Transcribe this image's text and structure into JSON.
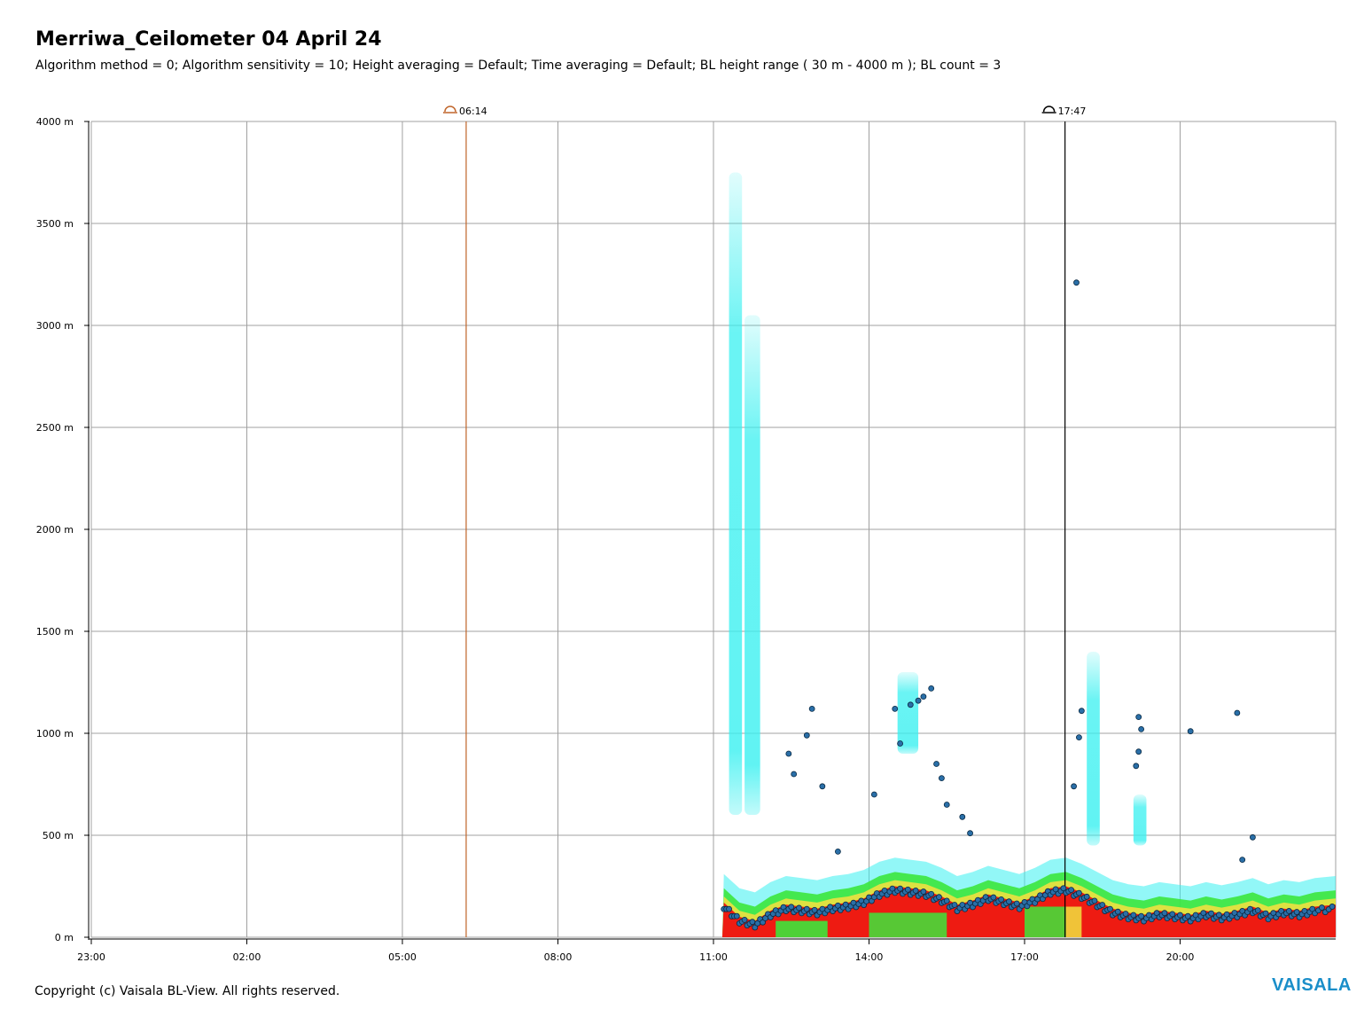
{
  "header": {
    "title": "Merriwa_Ceilometer 04 April 24",
    "subtitle": "Algorithm method = 0; Algorithm sensitivity = 10; Height averaging = Default; Time averaging = Default; BL height range ( 30 m - 4000 m ); BL count = 3"
  },
  "footer": {
    "copyright": "Copyright (c) Vaisala BL-View. All rights reserved.",
    "logo_text": "VAISALA"
  },
  "colors": {
    "grid": "#a0a0a0",
    "sunrise": "#c0652a",
    "sunset": "#000000",
    "cyan": "#39f0f0",
    "green": "#3ce63c",
    "yellow": "#f0e040",
    "red": "#ee1010",
    "dot_fill": "#2a6fa8",
    "logo": "#1a8ec9"
  },
  "chart_data": {
    "type": "heatmap",
    "title": "Merriwa_Ceilometer 04 April 24",
    "xlabel": "",
    "ylabel": "",
    "x_start_hours": 0,
    "x_end_hours": 24,
    "xticks": [
      {
        "h": 0,
        "label": "23:00"
      },
      {
        "h": 3,
        "label": "02:00"
      },
      {
        "h": 6,
        "label": "05:00"
      },
      {
        "h": 9,
        "label": "08:00"
      },
      {
        "h": 12,
        "label": "11:00"
      },
      {
        "h": 15,
        "label": "14:00"
      },
      {
        "h": 18,
        "label": "17:00"
      },
      {
        "h": 21,
        "label": "20:00"
      }
    ],
    "ylim": [
      0,
      4000
    ],
    "yticks": [
      {
        "v": 0,
        "label": "0 m"
      },
      {
        "v": 500,
        "label": "500 m"
      },
      {
        "v": 1000,
        "label": "1000 m"
      },
      {
        "v": 1500,
        "label": "1500 m"
      },
      {
        "v": 2000,
        "label": "2000 m"
      },
      {
        "v": 2500,
        "label": "2500 m"
      },
      {
        "v": 3000,
        "label": "3000 m"
      },
      {
        "v": 3500,
        "label": "3500 m"
      },
      {
        "v": 4000,
        "label": "4000 m"
      }
    ],
    "grid": true,
    "sunrise": {
      "h": 7.23,
      "label": "06:14"
    },
    "sunset": {
      "h": 18.78,
      "label": "17:47"
    },
    "data_start_h": 12.17,
    "data_end_h": 24,
    "cloud_plumes": [
      {
        "h0": 12.3,
        "h1": 12.55,
        "top": 3750,
        "bottom": 600
      },
      {
        "h0": 12.6,
        "h1": 12.9,
        "top": 3050,
        "bottom": 600
      },
      {
        "h0": 15.55,
        "h1": 15.95,
        "top": 1300,
        "bottom": 900
      },
      {
        "h0": 19.2,
        "h1": 19.45,
        "top": 1400,
        "bottom": 450
      },
      {
        "h0": 20.1,
        "h1": 20.35,
        "top": 700,
        "bottom": 450
      }
    ],
    "boundary_layer_m": [
      {
        "h": 12.2,
        "v": 150
      },
      {
        "h": 12.5,
        "v": 80
      },
      {
        "h": 12.8,
        "v": 60
      },
      {
        "h": 13.1,
        "v": 110
      },
      {
        "h": 13.4,
        "v": 140
      },
      {
        "h": 13.7,
        "v": 130
      },
      {
        "h": 14.0,
        "v": 120
      },
      {
        "h": 14.3,
        "v": 140
      },
      {
        "h": 14.6,
        "v": 150
      },
      {
        "h": 14.9,
        "v": 170
      },
      {
        "h": 15.2,
        "v": 210
      },
      {
        "h": 15.5,
        "v": 230
      },
      {
        "h": 15.8,
        "v": 220
      },
      {
        "h": 16.1,
        "v": 210
      },
      {
        "h": 16.4,
        "v": 180
      },
      {
        "h": 16.7,
        "v": 140
      },
      {
        "h": 17.0,
        "v": 160
      },
      {
        "h": 17.3,
        "v": 190
      },
      {
        "h": 17.6,
        "v": 170
      },
      {
        "h": 17.9,
        "v": 150
      },
      {
        "h": 18.2,
        "v": 180
      },
      {
        "h": 18.5,
        "v": 220
      },
      {
        "h": 18.8,
        "v": 230
      },
      {
        "h": 19.1,
        "v": 200
      },
      {
        "h": 19.4,
        "v": 160
      },
      {
        "h": 19.7,
        "v": 120
      },
      {
        "h": 20.0,
        "v": 100
      },
      {
        "h": 20.3,
        "v": 90
      },
      {
        "h": 20.6,
        "v": 110
      },
      {
        "h": 20.9,
        "v": 100
      },
      {
        "h": 21.2,
        "v": 90
      },
      {
        "h": 21.5,
        "v": 110
      },
      {
        "h": 21.8,
        "v": 95
      },
      {
        "h": 22.1,
        "v": 110
      },
      {
        "h": 22.4,
        "v": 130
      },
      {
        "h": 22.7,
        "v": 100
      },
      {
        "h": 23.0,
        "v": 120
      },
      {
        "h": 23.3,
        "v": 110
      },
      {
        "h": 23.6,
        "v": 130
      },
      {
        "h": 24.0,
        "v": 140
      }
    ],
    "upper_points_m": [
      {
        "h": 13.45,
        "v": 900
      },
      {
        "h": 13.55,
        "v": 800
      },
      {
        "h": 13.8,
        "v": 990
      },
      {
        "h": 13.9,
        "v": 1120
      },
      {
        "h": 14.1,
        "v": 740
      },
      {
        "h": 14.4,
        "v": 420
      },
      {
        "h": 15.1,
        "v": 700
      },
      {
        "h": 15.5,
        "v": 1120
      },
      {
        "h": 15.6,
        "v": 950
      },
      {
        "h": 15.8,
        "v": 1140
      },
      {
        "h": 15.95,
        "v": 1160
      },
      {
        "h": 16.05,
        "v": 1180
      },
      {
        "h": 16.2,
        "v": 1220
      },
      {
        "h": 16.3,
        "v": 850
      },
      {
        "h": 16.4,
        "v": 780
      },
      {
        "h": 16.5,
        "v": 650
      },
      {
        "h": 16.8,
        "v": 590
      },
      {
        "h": 16.95,
        "v": 510
      },
      {
        "h": 19.0,
        "v": 3210
      },
      {
        "h": 19.1,
        "v": 1110
      },
      {
        "h": 19.05,
        "v": 980
      },
      {
        "h": 18.95,
        "v": 740
      },
      {
        "h": 20.2,
        "v": 1080
      },
      {
        "h": 20.25,
        "v": 1020
      },
      {
        "h": 20.15,
        "v": 840
      },
      {
        "h": 20.2,
        "v": 910
      },
      {
        "h": 21.2,
        "v": 1010
      },
      {
        "h": 22.1,
        "v": 1100
      },
      {
        "h": 22.4,
        "v": 490
      },
      {
        "h": 22.2,
        "v": 380
      }
    ]
  }
}
